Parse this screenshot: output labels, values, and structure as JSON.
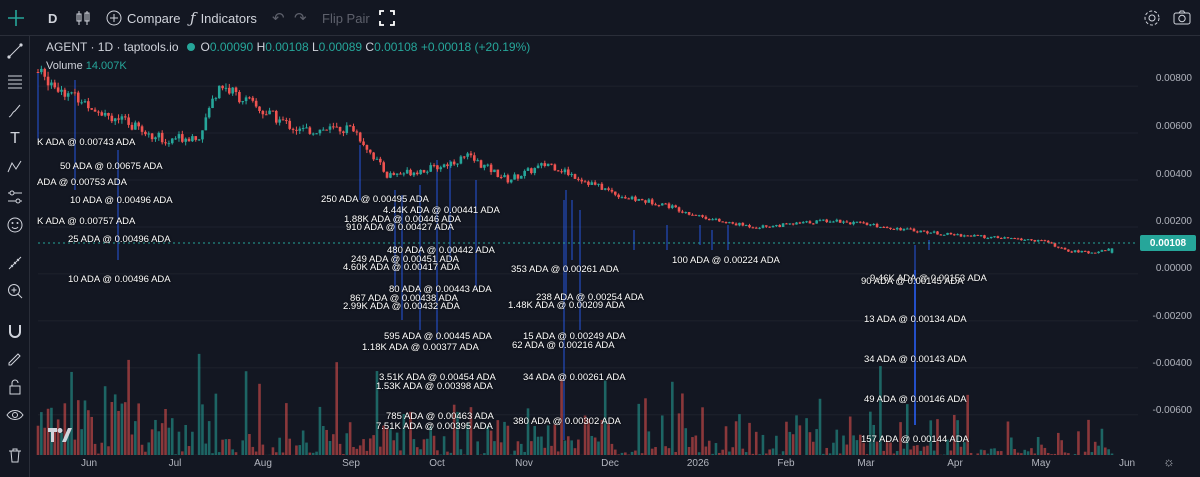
{
  "toolbar": {
    "interval": "D",
    "compare_label": "Compare",
    "indicators_label": "Indicators",
    "flip_pair_label": "Flip Pair"
  },
  "legend": {
    "symbol": "AGENT · 1D · taptools.io",
    "open_key": "O",
    "open": "0.00090",
    "high_key": "H",
    "high": "0.00108",
    "low_key": "L",
    "low": "0.00089",
    "close_key": "C",
    "close": "0.00108",
    "change": "+0.00018 (+20.19%)",
    "volume_label": "Volume",
    "volume_value": "14.007K"
  },
  "price_tag": "0.00108",
  "colors": {
    "up": "#26a69a",
    "down": "#ef5350",
    "background": "#131722",
    "marker": "#2962ff"
  },
  "icons": {
    "toolbar": [
      "candles-icon",
      "plus-circle-icon",
      "function-icon",
      "undo-icon",
      "redo-icon",
      "fullscreen-icon",
      "settings-icon",
      "camera-icon"
    ],
    "sidebar": [
      "crosshair-icon",
      "trendline-icon",
      "fib-icon",
      "brush-icon",
      "text-icon",
      "pattern-icon",
      "measure-icon",
      "emoji-icon",
      "ruler-icon",
      "zoom-in-icon",
      "magnet-icon",
      "lock-drawing-icon",
      "lock-icon",
      "eye-icon",
      "trash-icon"
    ]
  },
  "chart_data": {
    "type": "candlestick",
    "yaxis_ticks": [
      "0.00800",
      "0.00600",
      "0.00400",
      "0.00200",
      "0.00000",
      "-0.00200",
      "-0.00400",
      "-0.00600"
    ],
    "ylim": [
      -0.0075,
      0.0086
    ],
    "xaxis_ticks": [
      "Jun",
      "Jul",
      "Aug",
      "Sep",
      "Oct",
      "Nov",
      "Dec",
      "2026",
      "Feb",
      "Mar",
      "Apr",
      "May",
      "Jun"
    ],
    "price_path": [
      [
        0,
        0.0086
      ],
      [
        10,
        0.0076
      ],
      [
        28,
        0.0063
      ],
      [
        38,
        0.0057
      ],
      [
        48,
        0.0059
      ],
      [
        54,
        0.0081
      ],
      [
        66,
        0.007
      ],
      [
        78,
        0.0061
      ],
      [
        94,
        0.0062
      ],
      [
        104,
        0.0042
      ],
      [
        118,
        0.0045
      ],
      [
        128,
        0.005
      ],
      [
        140,
        0.004
      ],
      [
        152,
        0.0047
      ],
      [
        164,
        0.0039
      ],
      [
        176,
        0.0032
      ],
      [
        186,
        0.003
      ],
      [
        194,
        0.0026
      ],
      [
        204,
        0.0022
      ],
      [
        214,
        0.002
      ],
      [
        224,
        0.0021
      ],
      [
        236,
        0.0023
      ],
      [
        258,
        0.0019
      ],
      [
        270,
        0.0017
      ],
      [
        300,
        0.0014
      ],
      [
        306,
        0.001
      ],
      [
        314,
        0.0009
      ],
      [
        320,
        0.00108
      ]
    ],
    "trade_annotations": [
      "K ADA @ 0.00743 ADA",
      "50 ADA @ 0.00675 ADA",
      "ADA @ 0.00753 ADA",
      "10 ADA @ 0.00496 ADA",
      "K ADA @ 0.00757 ADA",
      "25 ADA @ 0.00496 ADA",
      "10 ADA @ 0.00496 ADA",
      "250 ADA @ 0.00495 ADA",
      "4.44K ADA @ 0.00441 ADA",
      "1.88K ADA @ 0.00446 ADA",
      "910 ADA @ 0.00427 ADA",
      "480 ADA @ 0.00442 ADA",
      "249 ADA @ 0.00451 ADA",
      "4.60K ADA @ 0.00417 ADA",
      "353 ADA @ 0.00261 ADA",
      "100 ADA @ 0.00224 ADA",
      "80 ADA @ 0.00443 ADA",
      "867 ADA @ 0.00438 ADA",
      "2.99K ADA @ 0.00432 ADA",
      "238 ADA @ 0.00254 ADA",
      "1.48K ADA @ 0.00209 ADA",
      "595 ADA @ 0.00445 ADA",
      "1.18K ADA @ 0.00377 ADA",
      "15 ADA @ 0.00249 ADA",
      "62 ADA @ 0.00216 ADA",
      "3.51K ADA @ 0.00454 ADA",
      "1.53K ADA @ 0.00398 ADA",
      "34 ADA @ 0.00261 ADA",
      "785 ADA @ 0.00463 ADA",
      "7.51K ADA @ 0.00395 ADA",
      "380 ADA @ 0.00302 ADA",
      "9.46K ADA @ 0.00153 ADA",
      "90 ADA @ 0.00145 ADA",
      "13 ADA @ 0.00134 ADA",
      "34 ADA @ 0.00143 ADA",
      "49 ADA @ 0.00146 ADA",
      "157 ADA @ 0.00144 ADA"
    ]
  }
}
